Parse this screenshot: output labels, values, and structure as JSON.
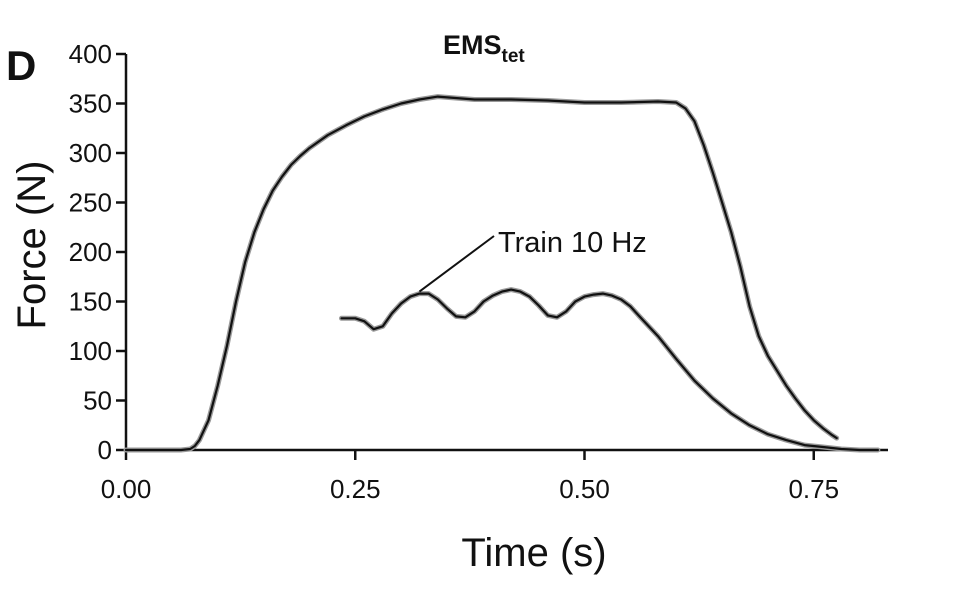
{
  "chart_data": {
    "type": "line",
    "panel_label": "D",
    "title": "EMS",
    "title_subscript": "tet",
    "xlabel": "Time (s)",
    "ylabel": "Force (N)",
    "xlim": [
      0.0,
      0.82
    ],
    "ylim": [
      0,
      400
    ],
    "xticks": [
      0.0,
      0.25,
      0.5,
      0.75
    ],
    "xtick_labels": [
      "0.00",
      "0.25",
      "0.50",
      "0.75"
    ],
    "yticks": [
      0,
      50,
      100,
      150,
      200,
      250,
      300,
      350,
      400
    ],
    "ytick_labels": [
      "0",
      "50",
      "100",
      "150",
      "200",
      "250",
      "300",
      "350",
      "400"
    ],
    "grid": false,
    "legend": "none",
    "annotations": [
      {
        "text": "Train 10 Hz",
        "points_to": {
          "x": 0.32,
          "y": 158
        }
      }
    ],
    "series": [
      {
        "color": "#111111",
        "x": [
          0.0,
          0.06,
          0.07,
          0.075,
          0.08,
          0.09,
          0.1,
          0.11,
          0.12,
          0.13,
          0.14,
          0.15,
          0.16,
          0.17,
          0.18,
          0.19,
          0.2,
          0.22,
          0.24,
          0.26,
          0.28,
          0.3,
          0.32,
          0.34,
          0.38,
          0.42,
          0.46,
          0.5,
          0.54,
          0.58,
          0.6,
          0.61,
          0.62,
          0.63,
          0.64,
          0.65,
          0.66,
          0.67,
          0.68,
          0.69,
          0.7,
          0.71,
          0.72,
          0.73,
          0.74,
          0.75,
          0.76,
          0.77,
          0.775
        ],
        "y": [
          0,
          0,
          1,
          4,
          10,
          30,
          65,
          105,
          150,
          190,
          220,
          243,
          262,
          276,
          288,
          297,
          305,
          318,
          328,
          337,
          344,
          350,
          354,
          357,
          354,
          354,
          353,
          351,
          351,
          352,
          351,
          345,
          332,
          308,
          280,
          250,
          220,
          185,
          145,
          115,
          95,
          80,
          65,
          52,
          40,
          30,
          22,
          15,
          12
        ]
      },
      {
        "color": "#111111",
        "x": [
          0.235,
          0.25,
          0.26,
          0.27,
          0.28,
          0.29,
          0.3,
          0.31,
          0.32,
          0.33,
          0.34,
          0.35,
          0.36,
          0.37,
          0.38,
          0.39,
          0.4,
          0.41,
          0.42,
          0.43,
          0.44,
          0.45,
          0.46,
          0.47,
          0.48,
          0.49,
          0.5,
          0.51,
          0.52,
          0.53,
          0.54,
          0.55,
          0.56,
          0.58,
          0.6,
          0.62,
          0.64,
          0.66,
          0.68,
          0.7,
          0.72,
          0.74,
          0.76,
          0.78,
          0.8,
          0.82
        ],
        "y": [
          133,
          133,
          130,
          122,
          125,
          138,
          148,
          155,
          158,
          158,
          152,
          143,
          135,
          134,
          140,
          150,
          156,
          160,
          162,
          160,
          155,
          146,
          136,
          134,
          140,
          150,
          155,
          157,
          158,
          156,
          152,
          145,
          135,
          115,
          92,
          70,
          52,
          37,
          25,
          16,
          10,
          5,
          3,
          1,
          0,
          0
        ]
      }
    ]
  }
}
